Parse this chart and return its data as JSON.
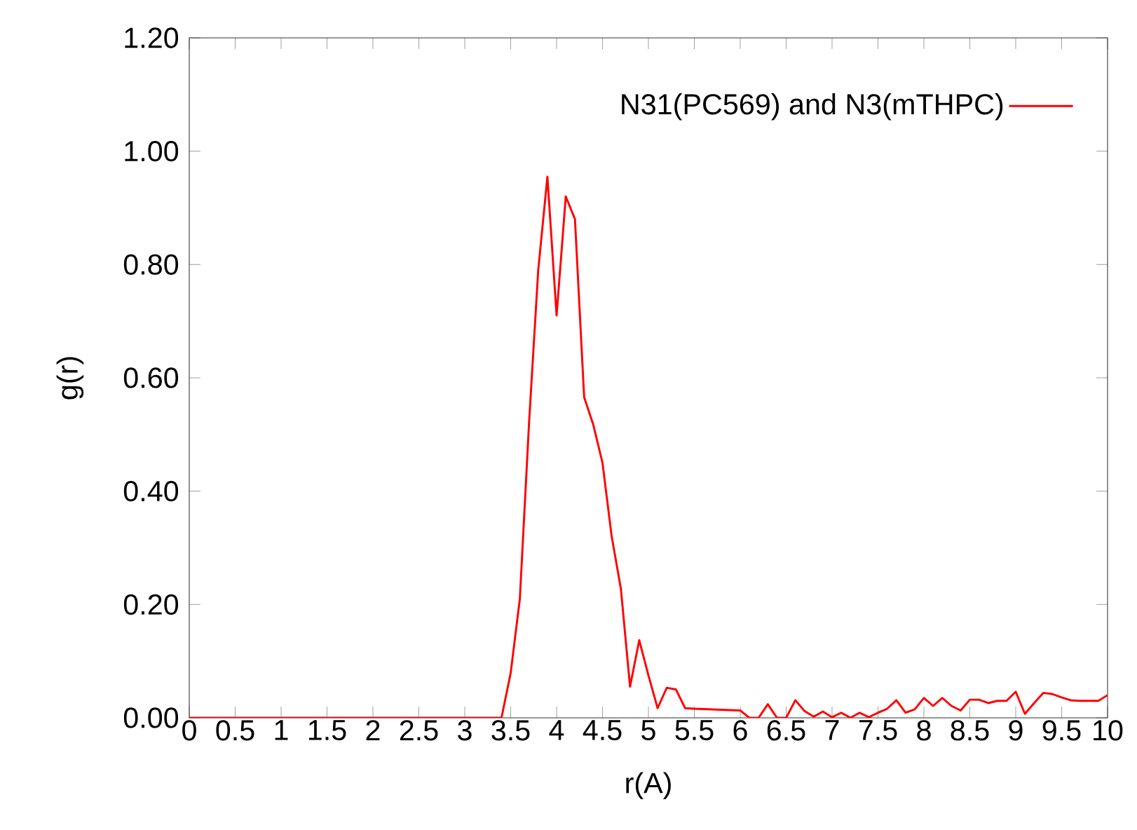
{
  "chart_data": {
    "type": "line",
    "xlabel": "r(A)",
    "ylabel": "g(r)",
    "series": [
      {
        "name": "N31(PC569) and N3(mTHPC)",
        "color": "#ff0000",
        "x": [
          0,
          3.4,
          3.5,
          3.6,
          3.7,
          3.8,
          3.9,
          4.0,
          4.1,
          4.2,
          4.3,
          4.4,
          4.5,
          4.6,
          4.7,
          4.8,
          4.9,
          5.0,
          5.1,
          5.2,
          5.3,
          5.4,
          5.5,
          6.0,
          6.1,
          6.2,
          6.3,
          6.4,
          6.5,
          6.6,
          6.7,
          6.8,
          6.9,
          7.0,
          7.1,
          7.2,
          7.3,
          7.4,
          7.5,
          7.6,
          7.7,
          7.8,
          7.9,
          8.0,
          8.1,
          8.2,
          8.3,
          8.4,
          8.5,
          8.6,
          8.7,
          8.8,
          8.9,
          9.0,
          9.1,
          9.2,
          9.3,
          9.4,
          9.5,
          9.6,
          9.7,
          9.8,
          9.9,
          10.0
        ],
        "values": [
          0,
          0,
          0.079,
          0.21,
          0.52,
          0.79,
          0.955,
          0.71,
          0.92,
          0.88,
          0.566,
          0.517,
          0.45,
          0.32,
          0.228,
          0.055,
          0.137,
          0.075,
          0.017,
          0.053,
          0.05,
          0.017,
          0.016,
          0.013,
          0,
          0,
          0.024,
          0,
          0,
          0.031,
          0.012,
          0.002,
          0.011,
          0.001,
          0.009,
          0,
          0.009,
          0.001,
          0.009,
          0.016,
          0.031,
          0.009,
          0.015,
          0.035,
          0.021,
          0.035,
          0.021,
          0.013,
          0.032,
          0.032,
          0.026,
          0.03,
          0.03,
          0.046,
          0.007,
          0.026,
          0.044,
          0.042,
          0.036,
          0.031,
          0.03,
          0.03,
          0.03,
          0.04
        ]
      }
    ],
    "xlim": [
      0,
      10
    ],
    "xticks": [
      0,
      0.5,
      1,
      1.5,
      2,
      2.5,
      3,
      3.5,
      4,
      4.5,
      5,
      5.5,
      6,
      6.5,
      7,
      7.5,
      8,
      8.5,
      9,
      9.5,
      10
    ],
    "ylim": [
      0,
      1.2
    ],
    "yticks": [
      {
        "value": 0,
        "label": "0.00"
      },
      {
        "value": 0.2,
        "label": "0.20"
      },
      {
        "value": 0.4,
        "label": "0.40"
      },
      {
        "value": 0.6,
        "label": "0.60"
      },
      {
        "value": 0.8,
        "label": "0.80"
      },
      {
        "value": 1.0,
        "label": "1.00"
      },
      {
        "value": 1.2,
        "label": "1.20"
      }
    ],
    "grid": false,
    "legend": "top right",
    "marker": "none",
    "line_style": "solid"
  }
}
